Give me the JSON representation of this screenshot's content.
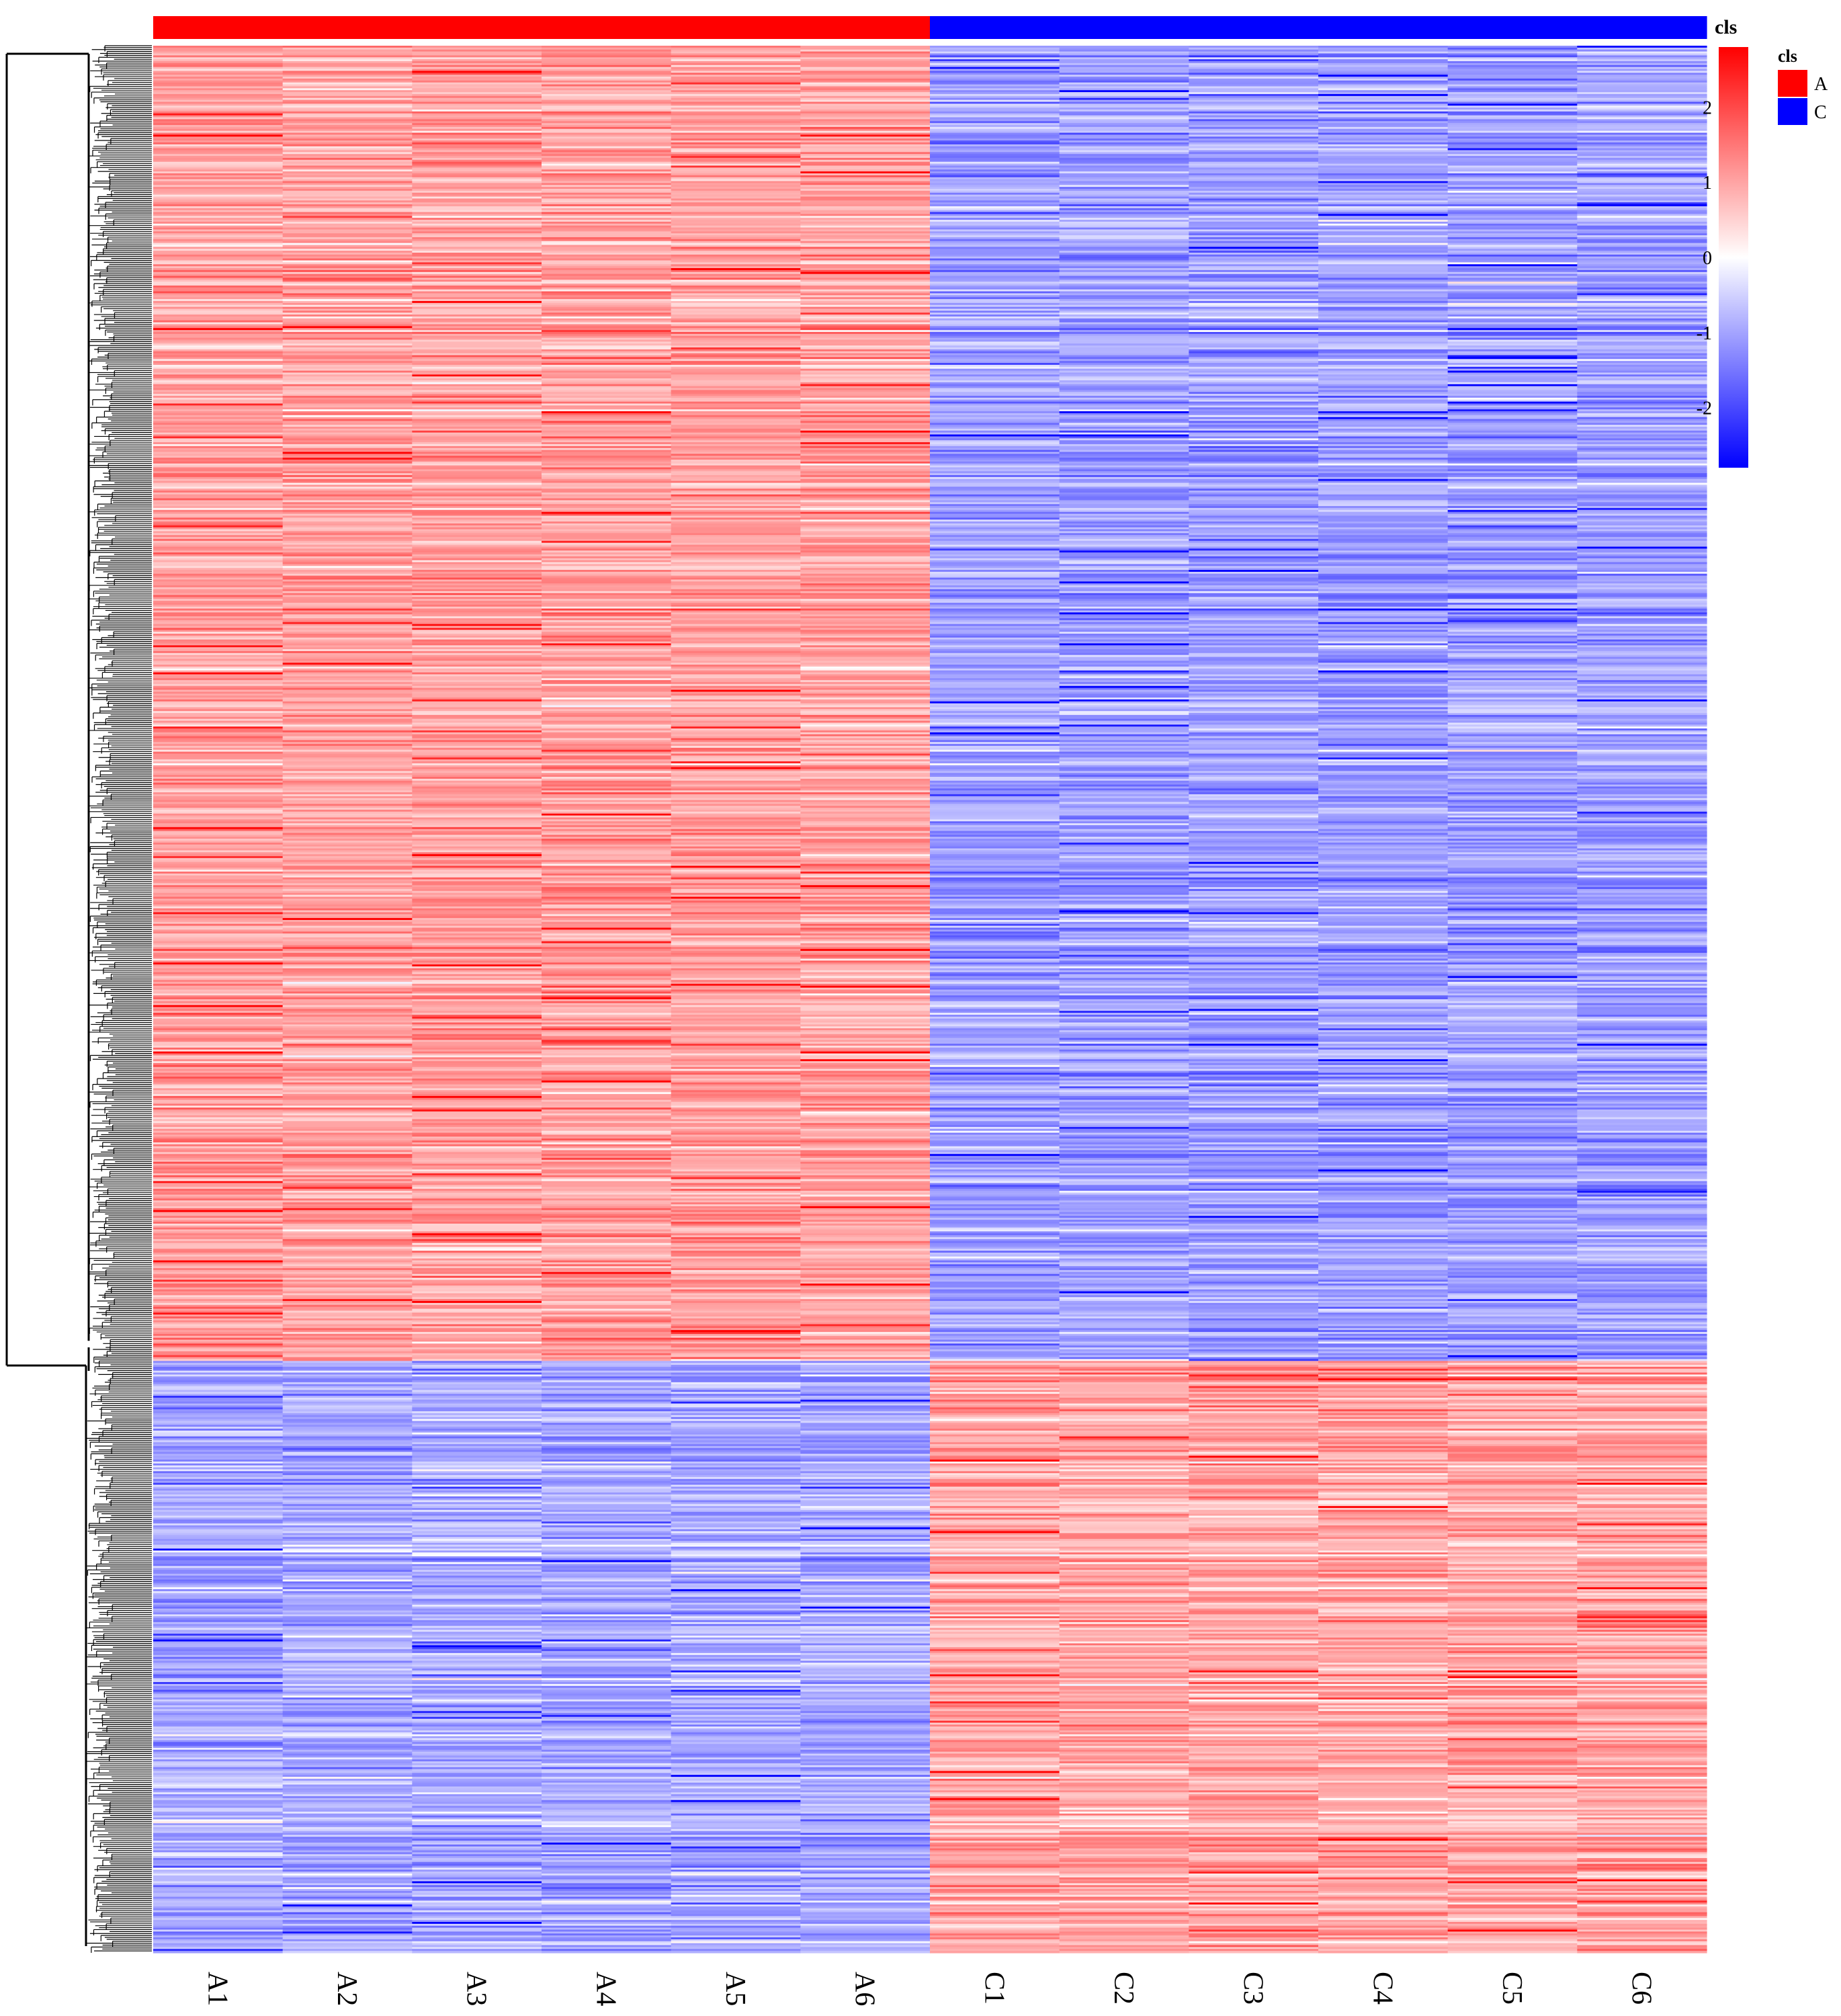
{
  "chart_data": {
    "type": "heatmap",
    "columns": [
      "A1",
      "A2",
      "A3",
      "A4",
      "A5",
      "A6",
      "C1",
      "C2",
      "C3",
      "C4",
      "C5",
      "C6"
    ],
    "annotation": {
      "name": "cls",
      "groups": [
        "A",
        "A",
        "A",
        "A",
        "A",
        "A",
        "C",
        "C",
        "C",
        "C",
        "C",
        "C"
      ],
      "legend": [
        {
          "label": "A",
          "color": "#ff0000"
        },
        {
          "label": "C",
          "color": "#0000ff"
        }
      ]
    },
    "color_scale": {
      "min": -2.8,
      "max": 2.8,
      "ticks": [
        2,
        1,
        0,
        -1,
        -2
      ],
      "low_color": "#0000ff",
      "mid_color": "#ffffff",
      "high_color": "#ff0000"
    },
    "row_clusters": [
      {
        "cluster": 1,
        "rows": 680,
        "mean_z": [
          1.05,
          1.05,
          1.05,
          1.05,
          1.05,
          1.05,
          -1.05,
          -1.05,
          -1.05,
          -1.05,
          -1.05,
          -1.05
        ]
      },
      {
        "cluster": 2,
        "rows": 306,
        "mean_z": [
          -0.95,
          -0.95,
          -0.95,
          -0.95,
          -0.95,
          -0.95,
          1.0,
          1.0,
          1.0,
          1.0,
          1.0,
          1.0
        ]
      }
    ],
    "dendrogram": "rows",
    "legend_placement": "top-right"
  }
}
